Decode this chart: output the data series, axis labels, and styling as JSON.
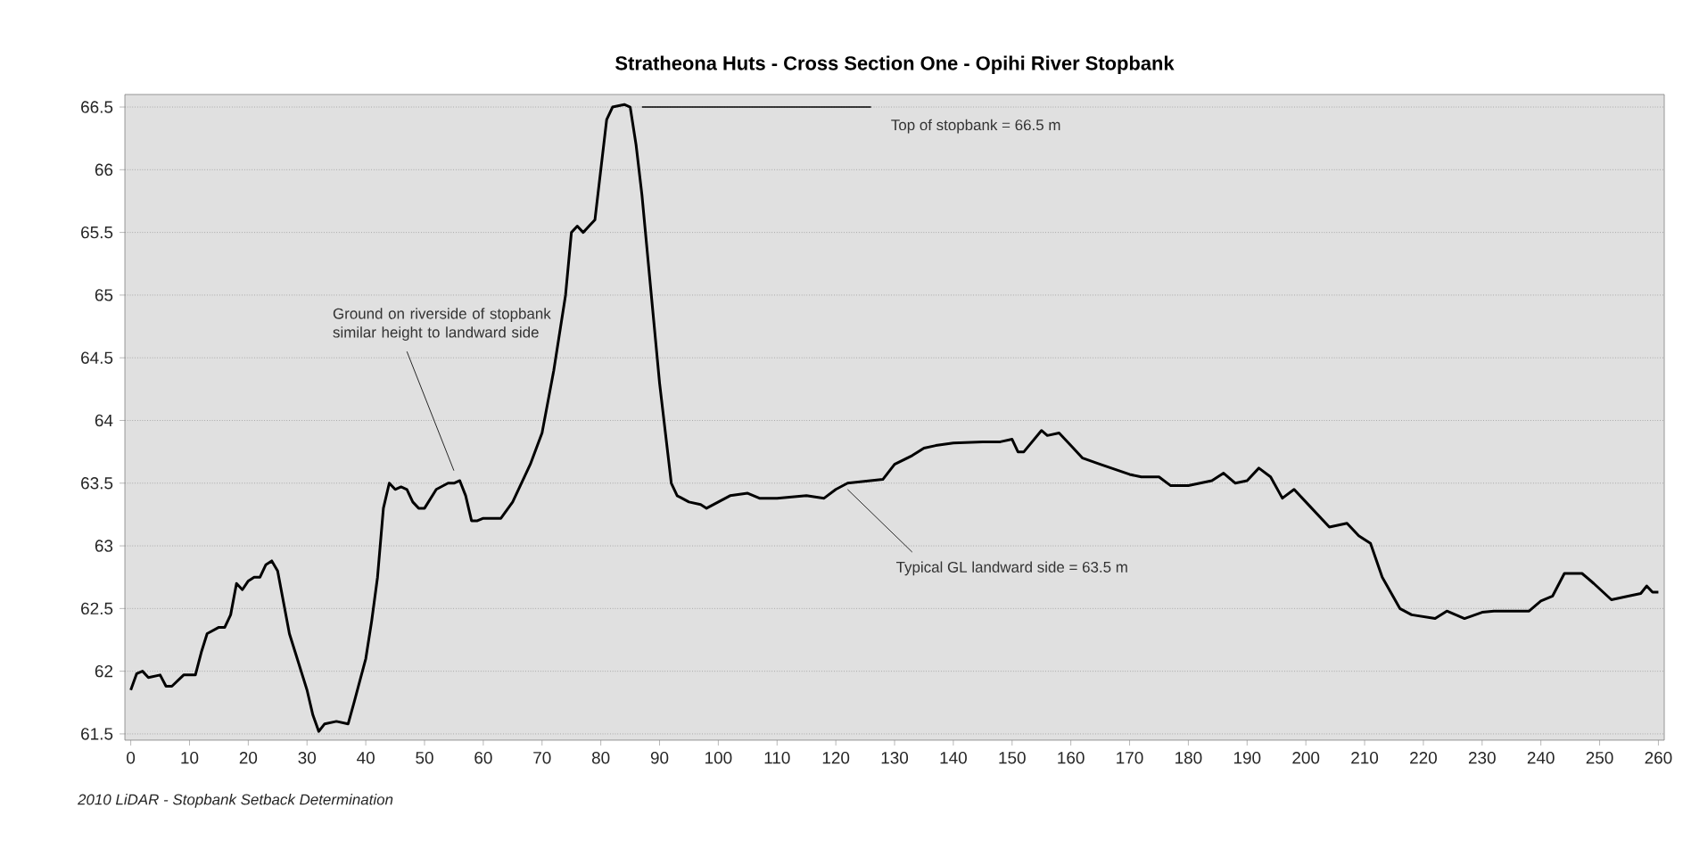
{
  "chart_data": {
    "type": "line",
    "title": "Stratheona Huts - Cross Section One - Opihi River Stopbank",
    "xlim": [
      -1,
      261
    ],
    "ylim": [
      61.45,
      66.6
    ],
    "xticks": [
      0,
      10,
      20,
      30,
      40,
      50,
      60,
      70,
      80,
      90,
      100,
      110,
      120,
      130,
      140,
      150,
      160,
      170,
      180,
      190,
      200,
      210,
      220,
      230,
      240,
      250,
      260
    ],
    "yticks": [
      61.5,
      62,
      62.5,
      63,
      63.5,
      64,
      64.5,
      65,
      65.5,
      66,
      66.5
    ],
    "grid": "y",
    "marker": "none",
    "line_style": "solid",
    "series": [
      {
        "color": "#000000",
        "x": [
          0,
          1,
          2,
          3,
          5,
          6,
          7,
          9,
          11,
          12,
          13,
          15,
          16,
          17,
          18,
          19,
          20,
          21,
          22,
          23,
          24,
          25,
          27,
          28,
          30,
          31,
          32,
          33,
          35,
          37,
          38,
          40,
          41,
          42,
          43,
          44,
          45,
          46,
          47,
          48,
          49,
          50,
          52,
          54,
          55,
          56,
          57,
          58,
          59,
          60,
          62,
          63,
          65,
          68,
          70,
          72,
          74,
          75,
          76,
          77,
          78,
          79,
          80,
          81,
          82,
          84,
          85,
          86,
          87,
          88,
          89,
          90,
          91,
          92,
          93,
          95,
          97,
          98,
          100,
          102,
          105,
          107,
          110,
          115,
          118,
          120,
          122,
          128,
          130,
          133,
          135,
          137,
          140,
          145,
          148,
          150,
          151,
          152,
          155,
          156,
          158,
          160,
          162,
          165,
          170,
          172,
          175,
          177,
          180,
          184,
          186,
          188,
          190,
          192,
          194,
          196,
          198,
          200,
          204,
          207,
          209,
          211,
          213,
          216,
          218,
          222,
          224,
          227,
          230,
          232,
          235,
          238,
          240,
          242,
          244,
          247,
          249,
          252,
          255,
          257,
          258,
          259,
          260
        ],
        "values": [
          61.85,
          61.98,
          62.0,
          61.95,
          61.97,
          61.88,
          61.88,
          61.97,
          61.97,
          62.15,
          62.3,
          62.35,
          62.35,
          62.45,
          62.7,
          62.65,
          62.72,
          62.75,
          62.75,
          62.85,
          62.88,
          62.8,
          62.3,
          62.15,
          61.85,
          61.65,
          61.52,
          61.58,
          61.6,
          61.58,
          61.75,
          62.1,
          62.4,
          62.75,
          63.3,
          63.5,
          63.45,
          63.47,
          63.45,
          63.35,
          63.3,
          63.3,
          63.45,
          63.5,
          63.5,
          63.52,
          63.4,
          63.2,
          63.2,
          63.22,
          63.22,
          63.22,
          63.35,
          63.65,
          63.9,
          64.4,
          65.0,
          65.5,
          65.55,
          65.5,
          65.55,
          65.6,
          66.0,
          66.4,
          66.5,
          66.52,
          66.5,
          66.2,
          65.8,
          65.3,
          64.8,
          64.3,
          63.9,
          63.5,
          63.4,
          63.35,
          63.33,
          63.3,
          63.35,
          63.4,
          63.42,
          63.38,
          63.38,
          63.4,
          63.38,
          63.45,
          63.5,
          63.53,
          63.65,
          63.72,
          63.78,
          63.8,
          63.82,
          63.83,
          63.83,
          63.85,
          63.75,
          63.75,
          63.92,
          63.88,
          63.9,
          63.8,
          63.7,
          63.65,
          63.57,
          63.55,
          63.55,
          63.48,
          63.48,
          63.52,
          63.58,
          63.5,
          63.52,
          63.62,
          63.55,
          63.38,
          63.45,
          63.35,
          63.15,
          63.18,
          63.08,
          63.02,
          62.75,
          62.5,
          62.45,
          62.42,
          62.48,
          62.42,
          62.47,
          62.48,
          62.48,
          62.48,
          62.56,
          62.6,
          62.78,
          62.78,
          62.7,
          62.57,
          62.6,
          62.62,
          62.68,
          62.63,
          62.63
        ]
      }
    ],
    "ref_lines": [
      {
        "axis": "y",
        "value": 66.5,
        "label": "Top of stopbank = 66.5 m",
        "color": "#000000"
      }
    ],
    "annotations": [
      "Ground on riverside of stopbank similar height to landward side",
      {
        "text": "Typical GL landward side = 63.5 m",
        "x": 122,
        "y": 63.45
      },
      "2010 LiDAR - Stopbank Setback Determination"
    ]
  }
}
